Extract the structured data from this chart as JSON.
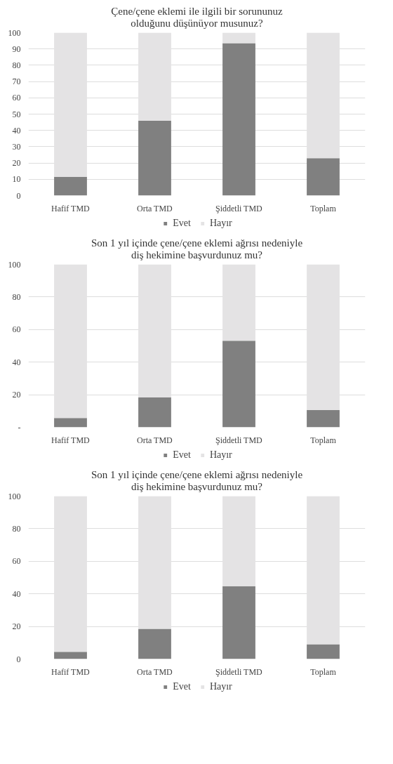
{
  "chart_data": [
    {
      "type": "bar",
      "stacked": true,
      "title": "Çene/çene eklemi ile ilgili bir sorununuz\nolduğunu düşünüyor musunuz?",
      "categories": [
        "Hafif TMD",
        "Orta TMD",
        "Şiddetli TMD",
        "Toplam"
      ],
      "series": [
        {
          "name": "Evet",
          "color": "#808080",
          "values": [
            11.5,
            46,
            93.5,
            23
          ]
        },
        {
          "name": "Hayır",
          "color": "#e4e3e4",
          "values": [
            88.5,
            54,
            6.5,
            77
          ]
        }
      ],
      "ylim": [
        0,
        100
      ],
      "yticks": [
        0,
        10,
        20,
        30,
        40,
        50,
        60,
        70,
        80,
        90,
        100
      ],
      "grid": "y",
      "legend": "bottom"
    },
    {
      "type": "bar",
      "stacked": true,
      "title": "Son 1 yıl içinde çene/çene eklemi ağrısı nedeniyle\ndiş hekimine başvurdunuz mu?",
      "categories": [
        "Hafif TMD",
        "Orta TMD",
        "Şiddetli TMD",
        "Toplam"
      ],
      "series": [
        {
          "name": "Evet",
          "color": "#808080",
          "values": [
            5.7,
            18.3,
            53.1,
            10.7
          ]
        },
        {
          "name": "Hayır",
          "color": "#e4e3e4",
          "values": [
            94.3,
            81.7,
            46.9,
            89.3
          ]
        }
      ],
      "ylim": [
        0,
        100
      ],
      "yticks": [
        {
          "value": 0,
          "label": "-"
        },
        20,
        40,
        60,
        80,
        100
      ],
      "grid": "y",
      "legend": "bottom"
    },
    {
      "type": "bar",
      "stacked": true,
      "title": "Son 1 yıl içinde çene/çene eklemi ağrısı nedeniyle\ndiş hekimine başvurdunuz mu?",
      "categories": [
        "Hafif TMD",
        "Orta TMD",
        "Şiddetli TMD",
        "Toplam"
      ],
      "series": [
        {
          "name": "Evet",
          "color": "#808080",
          "values": [
            4.4,
            18.5,
            44.7,
            9.1
          ]
        },
        {
          "name": "Hayır",
          "color": "#e4e3e4",
          "values": [
            95.6,
            81.5,
            55.3,
            90.9
          ]
        }
      ],
      "ylim": [
        0,
        100
      ],
      "yticks": [
        0,
        20,
        40,
        60,
        80,
        100
      ],
      "grid": "y",
      "legend": "bottom"
    }
  ]
}
